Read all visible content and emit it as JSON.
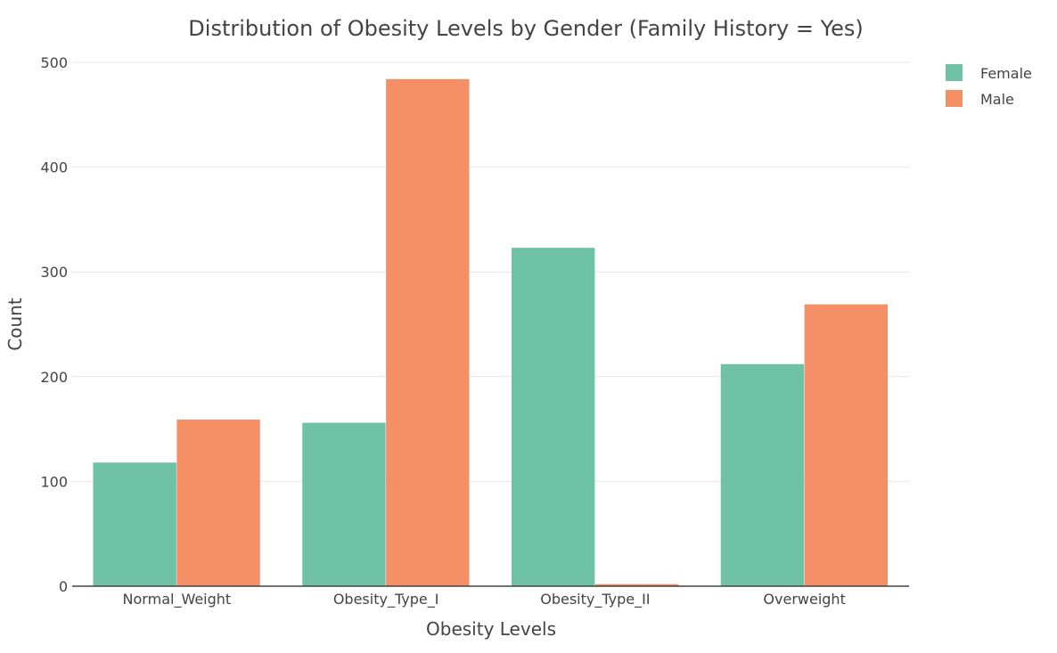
{
  "chart_data": {
    "type": "bar",
    "title": "Distribution of Obesity Levels by Gender (Family History = Yes)",
    "xlabel": "Obesity Levels",
    "ylabel": "Count",
    "categories": [
      "Normal_Weight",
      "Obesity_Type_I",
      "Obesity_Type_II",
      "Overweight"
    ],
    "series": [
      {
        "name": "Female",
        "color": "#6fc2a5",
        "values": [
          118,
          156,
          323,
          212
        ]
      },
      {
        "name": "Male",
        "color": "#f58f65",
        "values": [
          159,
          484,
          2,
          269
        ]
      }
    ],
    "ylim": [
      0,
      500
    ],
    "yticks": [
      0,
      100,
      200,
      300,
      400,
      500
    ],
    "grid": true,
    "legend_position": "top-right"
  }
}
